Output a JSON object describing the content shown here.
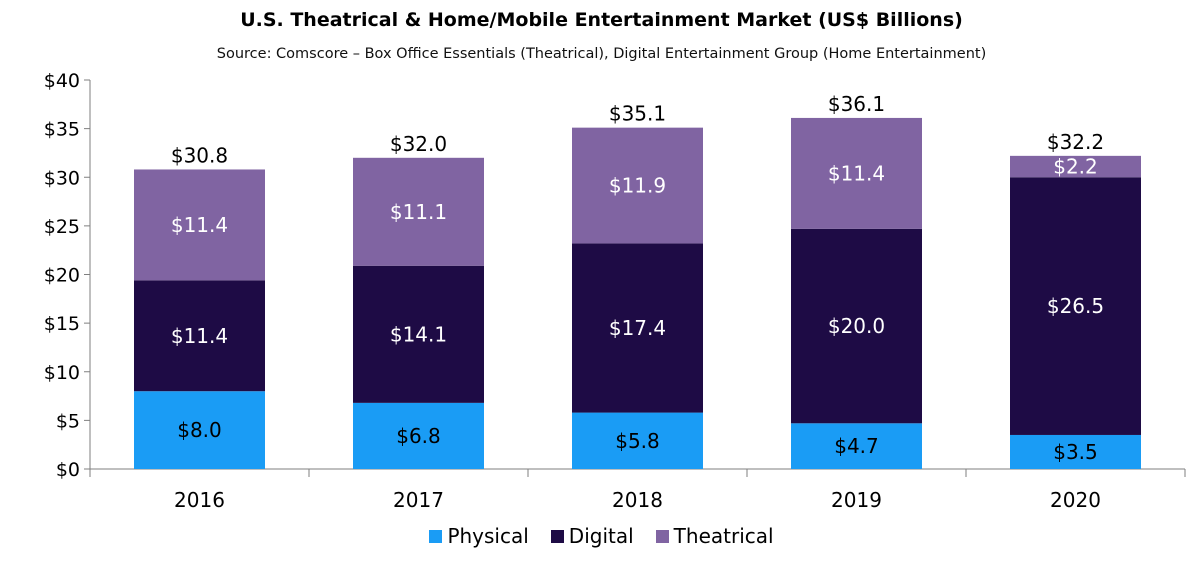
{
  "chart_data": {
    "type": "bar",
    "stacked": true,
    "title": "U.S. Theatrical & Home/Mobile Entertainment Market (US$ Billions)",
    "subtitle": "Source: Comscore – Box Office Essentials (Theatrical), Digital Entertainment Group (Home Entertainment)",
    "xlabel": "",
    "ylabel": "",
    "ylim": [
      0,
      40
    ],
    "yticks": [
      "$0",
      "$5",
      "$10",
      "$15",
      "$20",
      "$25",
      "$30",
      "$35",
      "$40"
    ],
    "categories": [
      "2016",
      "2017",
      "2018",
      "2019",
      "2020"
    ],
    "series": [
      {
        "name": "Physical",
        "color": "#1a9cf5",
        "values": [
          8.0,
          6.8,
          5.8,
          4.7,
          3.5
        ],
        "labels": [
          "$8.0",
          "$6.8",
          "$5.8",
          "$4.7",
          "$3.5"
        ]
      },
      {
        "name": "Digital",
        "color": "#1e0b45",
        "values": [
          11.4,
          14.1,
          17.4,
          20.0,
          26.5
        ],
        "labels": [
          "$11.4",
          "$14.1",
          "$17.4",
          "$20.0",
          "$26.5"
        ]
      },
      {
        "name": "Theatrical",
        "color": "#8064a2",
        "values": [
          11.4,
          11.1,
          11.9,
          11.4,
          2.2
        ],
        "labels": [
          "$11.4",
          "$11.1",
          "$11.9",
          "$11.4",
          "$2.2"
        ]
      }
    ],
    "totals": [
      "$30.8",
      "$32.0",
      "$35.1",
      "$36.1",
      "$32.2"
    ],
    "legend_position": "bottom",
    "grid": false
  }
}
